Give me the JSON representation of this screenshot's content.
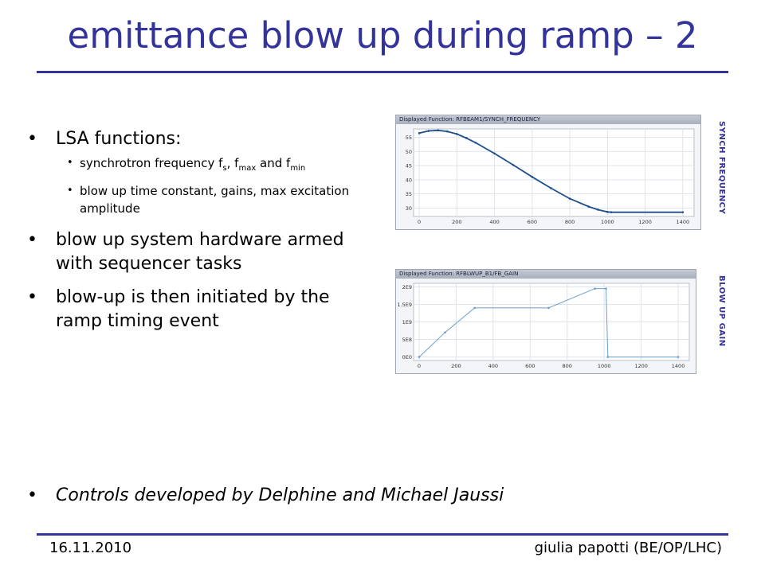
{
  "title": "emittance blow up during ramp – 2",
  "bullets": {
    "lsa": "LSA functions:",
    "sub1_a": "synchrotron frequency f",
    "sub1_s": "s",
    "sub1_b": ", f",
    "sub1_max": "max",
    "sub1_c": " and f",
    "sub1_min": "min",
    "sub2": "blow up time constant, gains, max excitation amplitude",
    "hw": "blow up system hardware armed with sequencer tasks",
    "init": "blow-up is then initiated by the ramp timing event",
    "controls": "Controls developed by Delphine and Michael Jaussi"
  },
  "footer": {
    "date": "16.11.2010",
    "author": "giulia papotti (BE/OP/LHC)"
  },
  "side_labels": {
    "chart1": "SYNCH FREQUENCY",
    "chart2": "BLOW UP GAIN"
  },
  "chart_data": [
    {
      "type": "line",
      "title": "Displayed Function: RFBEAM1/SYNCH_FREQUENCY",
      "x_ticks": [
        0,
        200,
        400,
        600,
        800,
        1000,
        1200,
        1400
      ],
      "y_ticks": [
        "30",
        "35",
        "40",
        "45",
        "50",
        "55"
      ],
      "xlim": [
        -30,
        1460
      ],
      "ylim": [
        27,
        58
      ],
      "color": "#1f4e8c",
      "series": [
        {
          "x": [
            0,
            50,
            100,
            150,
            200,
            250,
            300,
            400,
            500,
            600,
            700,
            800,
            900,
            950,
            1000,
            1020,
            1400
          ],
          "y": [
            56.5,
            57.3,
            57.5,
            57.1,
            56.2,
            54.8,
            53.1,
            49.3,
            45.2,
            41.0,
            37.0,
            33.3,
            30.5,
            29.4,
            28.6,
            28.5,
            28.5
          ]
        }
      ]
    },
    {
      "type": "line",
      "title": "Displayed Function: RFBLWUP_B1/FB_GAIN",
      "x_ticks": [
        0,
        200,
        400,
        600,
        800,
        1000,
        1200,
        1400
      ],
      "y_ticks": [
        "0E0",
        "5E8",
        "1E9",
        "1.5E9",
        "2E9"
      ],
      "y_tick_values": [
        0,
        500000000,
        1000000000,
        1500000000,
        2000000000
      ],
      "xlim": [
        -30,
        1460
      ],
      "ylim": [
        -100000000,
        2100000000
      ],
      "color": "#6a9ecb",
      "series": [
        {
          "x": [
            0,
            140,
            300,
            700,
            950,
            1010,
            1020,
            1400
          ],
          "y": [
            0,
            700000000,
            1400000000,
            1400000000,
            1950000000,
            1950000000,
            0,
            0
          ]
        }
      ]
    }
  ]
}
